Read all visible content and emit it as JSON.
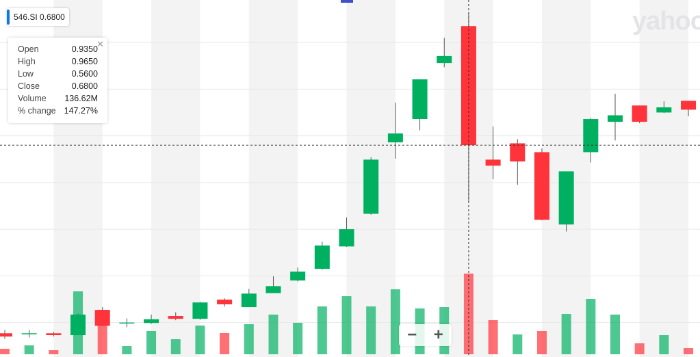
{
  "chart_data": {
    "type": "candlestick",
    "symbol": "546.SI",
    "last": "0.6800",
    "watermark": "yahoo",
    "tooltip": [
      {
        "label": "Open",
        "value": {
          "value": 0.935,
          "label": "0.9350"
        }
      },
      {
        "label": "High",
        "value": {
          "value": 0.965,
          "label": "0.9650"
        }
      },
      {
        "label": "Low",
        "value": {
          "value": 0.56,
          "label": "0.5600"
        }
      },
      {
        "label": "Close",
        "value": {
          "value": 0.68,
          "label": "0.6800"
        }
      },
      {
        "label": "Volume",
        "value": {
          "value": 136.62,
          "label": "136.62M"
        }
      },
      {
        "label": "% change",
        "value": {
          "value": 147.27,
          "label": "147.27%"
        }
      }
    ],
    "open": [
      0.277,
      0.277,
      0.277,
      0.273,
      0.327,
      0.3,
      0.299,
      0.314,
      0.308,
      0.349,
      0.333,
      0.363,
      0.39,
      0.415,
      0.463,
      0.533,
      0.686,
      0.736,
      0.856,
      0.935,
      0.649,
      0.684,
      0.665,
      0.51,
      0.665,
      0.73,
      0.765,
      0.75,
      0.775
    ],
    "high": [
      0.284,
      0.284,
      0.28,
      0.319,
      0.333,
      0.309,
      0.317,
      0.322,
      0.344,
      0.352,
      0.372,
      0.399,
      0.418,
      0.473,
      0.525,
      0.654,
      0.771,
      0.821,
      0.91,
      0.965,
      0.72,
      0.693,
      0.673,
      0.624,
      0.739,
      0.79,
      0.765,
      0.774,
      0.775
    ],
    "low": [
      0.265,
      0.268,
      0.27,
      0.273,
      0.292,
      0.29,
      0.297,
      0.305,
      0.306,
      0.334,
      0.333,
      0.363,
      0.388,
      0.413,
      0.462,
      0.531,
      0.651,
      0.712,
      0.847,
      0.56,
      0.607,
      0.595,
      0.519,
      0.495,
      0.643,
      0.69,
      0.727,
      0.749,
      0.742
    ],
    "close": [
      0.27,
      0.277,
      0.273,
      0.317,
      0.293,
      0.3,
      0.307,
      0.308,
      0.343,
      0.339,
      0.362,
      0.378,
      0.409,
      0.465,
      0.5,
      0.649,
      0.705,
      0.821,
      0.871,
      0.68,
      0.636,
      0.645,
      0.52,
      0.624,
      0.736,
      0.744,
      0.73,
      0.761,
      0.756
    ],
    "volume": [
      9.3,
      15.1,
      6.9,
      106.5,
      75.3,
      13.9,
      39.4,
      25.5,
      48.6,
      35.9,
      50.9,
      67.2,
      53.3,
      81.0,
      98.4,
      81.0,
      110.0,
      77.6,
      79.9,
      136.62,
      57.9,
      33.6,
      39.4,
      68.3,
      93.8,
      67.2,
      18.5,
      32.4,
      10.4
    ],
    "up_color": "#00b061",
    "down_color": "#ff333a",
    "ylim": [
      0.232,
      0.991
    ],
    "yticks": [
      0.3,
      0.4,
      0.5,
      0.6,
      0.7,
      0.8,
      0.9
    ],
    "y2lim": [
      0,
      600
    ],
    "grid": true
  }
}
